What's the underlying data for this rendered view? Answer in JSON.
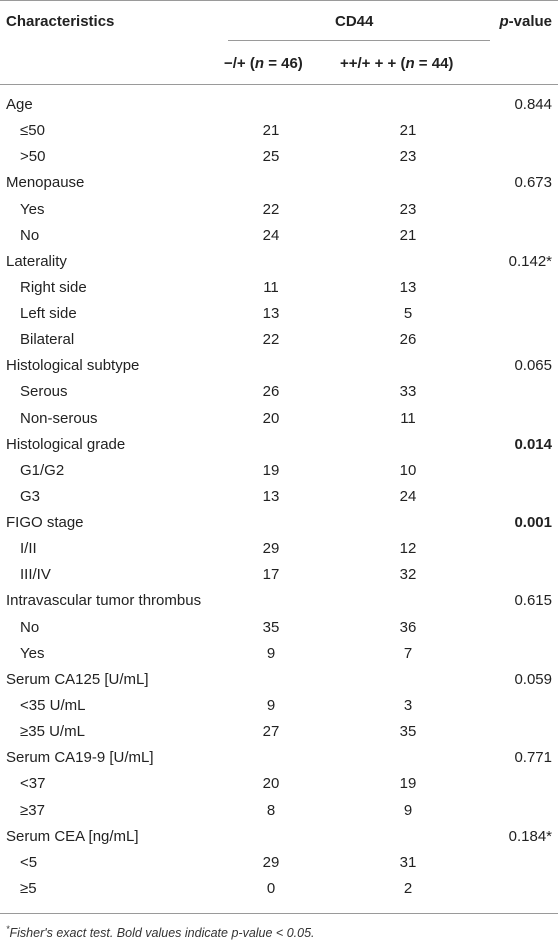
{
  "header": {
    "characteristics": "Characteristics",
    "cd44": "CD44",
    "pvalue_p": "p",
    "pvalue_rest": "-value",
    "col1_prefix": "−/+ (",
    "col1_n": "n",
    "col1_suffix": " = 46)",
    "col2_prefix": "++/+ + + (",
    "col2_n": "n",
    "col2_suffix": " = 44)"
  },
  "rows": [
    {
      "label": "Age",
      "c1": "",
      "c2": "",
      "p": "0.844",
      "bold": false,
      "sub": false
    },
    {
      "label": "≤50",
      "c1": "21",
      "c2": "21",
      "p": "",
      "bold": false,
      "sub": true
    },
    {
      "label": ">50",
      "c1": "25",
      "c2": "23",
      "p": "",
      "bold": false,
      "sub": true
    },
    {
      "label": "Menopause",
      "c1": "",
      "c2": "",
      "p": "0.673",
      "bold": false,
      "sub": false
    },
    {
      "label": "Yes",
      "c1": "22",
      "c2": "23",
      "p": "",
      "bold": false,
      "sub": true
    },
    {
      "label": "No",
      "c1": "24",
      "c2": "21",
      "p": "",
      "bold": false,
      "sub": true
    },
    {
      "label": "Laterality",
      "c1": "",
      "c2": "",
      "p": "0.142*",
      "bold": false,
      "sub": false
    },
    {
      "label": "Right side",
      "c1": "11",
      "c2": "13",
      "p": "",
      "bold": false,
      "sub": true
    },
    {
      "label": "Left side",
      "c1": "13",
      "c2": "5",
      "p": "",
      "bold": false,
      "sub": true
    },
    {
      "label": "Bilateral",
      "c1": "22",
      "c2": "26",
      "p": "",
      "bold": false,
      "sub": true
    },
    {
      "label": "Histological subtype",
      "c1": "",
      "c2": "",
      "p": "0.065",
      "bold": false,
      "sub": false
    },
    {
      "label": "Serous",
      "c1": "26",
      "c2": "33",
      "p": "",
      "bold": false,
      "sub": true
    },
    {
      "label": "Non-serous",
      "c1": "20",
      "c2": "11",
      "p": "",
      "bold": false,
      "sub": true
    },
    {
      "label": "Histological grade",
      "c1": "",
      "c2": "",
      "p": "0.014",
      "bold": true,
      "sub": false
    },
    {
      "label": "G1/G2",
      "c1": "19",
      "c2": "10",
      "p": "",
      "bold": false,
      "sub": true
    },
    {
      "label": "G3",
      "c1": "13",
      "c2": "24",
      "p": "",
      "bold": false,
      "sub": true
    },
    {
      "label": "FIGO stage",
      "c1": "",
      "c2": "",
      "p": "0.001",
      "bold": true,
      "sub": false
    },
    {
      "label": "I/II",
      "c1": "29",
      "c2": "12",
      "p": "",
      "bold": false,
      "sub": true
    },
    {
      "label": "III/IV",
      "c1": "17",
      "c2": "32",
      "p": "",
      "bold": false,
      "sub": true
    },
    {
      "label": "Intravascular tumor thrombus",
      "c1": "",
      "c2": "",
      "p": "0.615",
      "bold": false,
      "sub": false
    },
    {
      "label": "No",
      "c1": "35",
      "c2": "36",
      "p": "",
      "bold": false,
      "sub": true
    },
    {
      "label": "Yes",
      "c1": "9",
      "c2": "7",
      "p": "",
      "bold": false,
      "sub": true
    },
    {
      "label": "Serum CA125 [U/mL]",
      "c1": "",
      "c2": "",
      "p": "0.059",
      "bold": false,
      "sub": false
    },
    {
      "label": "<35 U/mL",
      "c1": "9",
      "c2": "3",
      "p": "",
      "bold": false,
      "sub": true
    },
    {
      "label": "≥35 U/mL",
      "c1": "27",
      "c2": "35",
      "p": "",
      "bold": false,
      "sub": true
    },
    {
      "label": "Serum CA19-9 [U/mL]",
      "c1": "",
      "c2": "",
      "p": "0.771",
      "bold": false,
      "sub": false
    },
    {
      "label": "<37",
      "c1": "20",
      "c2": "19",
      "p": "",
      "bold": false,
      "sub": true
    },
    {
      "label": "≥37",
      "c1": "8",
      "c2": "9",
      "p": "",
      "bold": false,
      "sub": true
    },
    {
      "label": "Serum CEA [ng/mL]",
      "c1": "",
      "c2": "",
      "p": "0.184*",
      "bold": false,
      "sub": false
    },
    {
      "label": "<5",
      "c1": "29",
      "c2": "31",
      "p": "",
      "bold": false,
      "sub": true
    },
    {
      "label": "≥5",
      "c1": "0",
      "c2": "2",
      "p": "",
      "bold": false,
      "sub": true
    }
  ],
  "footnote": {
    "star": "*",
    "text": "Fisher's exact test. Bold values indicate p-value < 0.05."
  }
}
